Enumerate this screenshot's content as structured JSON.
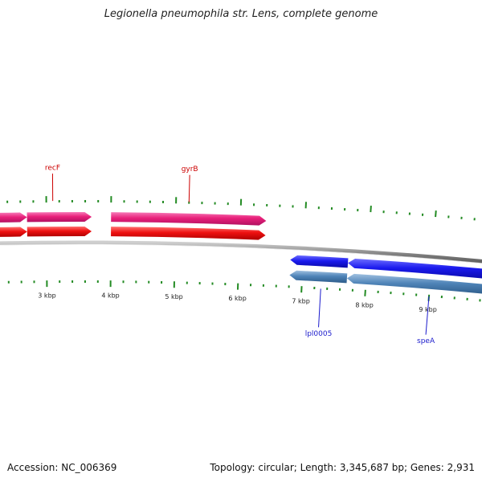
{
  "header": {
    "title": "Legionella pneumophila str. Lens, complete genome"
  },
  "footer": {
    "accession": "Accession: NC_006369",
    "summary": "Topology: circular; Length: 3,345,687 bp; Genes: 2,931"
  },
  "colors": {
    "forward_gene": "#e8207a",
    "forward_cds": "#ee1111",
    "reverse_gene": "#1a1aee",
    "reverse_cds": "#4f84b8",
    "backbone": "#808080",
    "tick": "#238b23",
    "forward_label": "#cc0000",
    "reverse_label": "#1a1acc"
  },
  "ruler": {
    "labels": [
      "3 kbp",
      "4 kbp",
      "5 kbp",
      "6 kbp",
      "7 kbp",
      "8 kbp",
      "9 kbp"
    ],
    "positions_kbp": [
      3,
      4,
      5,
      6,
      7,
      8,
      9
    ]
  },
  "features": {
    "forward_genes": [
      {
        "start_kbp": 2.0,
        "end_kbp": 2.7
      },
      {
        "start_kbp": 2.7,
        "end_kbp": 3.7
      },
      {
        "start_kbp": 4.0,
        "end_kbp": 6.4
      }
    ],
    "forward_cds": [
      {
        "start_kbp": 2.0,
        "end_kbp": 2.7
      },
      {
        "start_kbp": 2.7,
        "end_kbp": 3.7
      },
      {
        "start_kbp": 4.0,
        "end_kbp": 6.4
      }
    ],
    "reverse_genes": [
      {
        "start_kbp": 6.8,
        "end_kbp": 7.7
      },
      {
        "start_kbp": 7.7,
        "end_kbp": 10.0
      }
    ],
    "reverse_cds": [
      {
        "start_kbp": 6.8,
        "end_kbp": 7.7
      },
      {
        "start_kbp": 7.7,
        "end_kbp": 10.0
      }
    ]
  },
  "gene_labels": [
    {
      "name": "recF",
      "strand": "forward",
      "position_kbp": 3.1
    },
    {
      "name": "gyrB",
      "strand": "forward",
      "position_kbp": 5.2
    },
    {
      "name": "lpl0005",
      "strand": "reverse",
      "position_kbp": 7.3
    },
    {
      "name": "speA",
      "strand": "reverse",
      "position_kbp": 9.0
    }
  ]
}
